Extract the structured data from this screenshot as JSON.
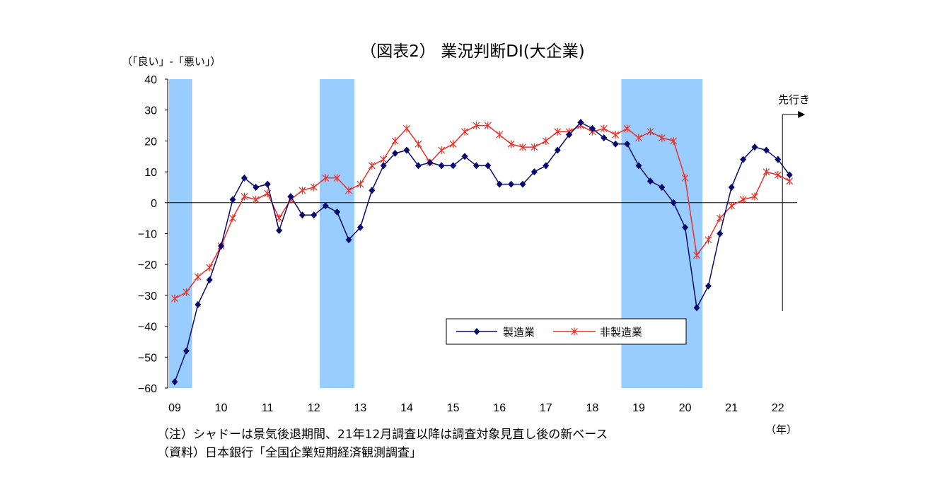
{
  "chart_data": {
    "type": "line",
    "title": "（図表2） 業況判断DI(大企業)",
    "ylabel": "（「良い」-「悪い」）",
    "xlabel": "（年）",
    "ylim": [
      -60,
      40
    ],
    "yticks": [
      40,
      30,
      20,
      10,
      0,
      -10,
      -20,
      -30,
      -40,
      -50,
      -60
    ],
    "year_labels": [
      "09",
      "10",
      "11",
      "12",
      "13",
      "14",
      "15",
      "16",
      "17",
      "18",
      "19",
      "20",
      "21",
      "22"
    ],
    "forecast_label": "先行き",
    "recession_bands": [
      {
        "start": "2009Q1",
        "end": "2009Q2"
      },
      {
        "start": "2012Q2",
        "end": "2012Q4"
      },
      {
        "start": "2018Q4",
        "end": "2020Q2"
      }
    ],
    "series": [
      {
        "name": "製造業",
        "color": "#0a0a6e",
        "marker": "diamond",
        "values": [
          -58,
          -48,
          -33,
          -25,
          -14,
          1,
          8,
          5,
          6,
          -9,
          2,
          -4,
          -4,
          -1,
          -3,
          -12,
          -8,
          4,
          12,
          16,
          17,
          12,
          13,
          12,
          12,
          15,
          12,
          12,
          6,
          6,
          6,
          10,
          12,
          17,
          22,
          26,
          24,
          21,
          19,
          19,
          12,
          7,
          5,
          0,
          -8,
          -34,
          -27,
          -10,
          5,
          14,
          18,
          17,
          14,
          9
        ]
      },
      {
        "name": "非製造業",
        "color": "#e8312a",
        "marker": "star",
        "values": [
          -31,
          -29,
          -24,
          -21,
          -14,
          -5,
          2,
          1,
          3,
          -5,
          1,
          4,
          5,
          8,
          8,
          4,
          6,
          12,
          14,
          20,
          24,
          19,
          13,
          17,
          19,
          23,
          25,
          25,
          22,
          19,
          18,
          18,
          20,
          23,
          23,
          25,
          23,
          24,
          22,
          24,
          21,
          23,
          21,
          20,
          8,
          -17,
          -12,
          -5,
          -1,
          1,
          2,
          10,
          9,
          7
        ]
      }
    ]
  },
  "notes": {
    "line1": "（注）シャドーは景気後退期間、21年12月調査以降は調査対象見直し後の新ベース",
    "line2": "（資料）日本銀行「全国企業短期経済観測調査」"
  }
}
